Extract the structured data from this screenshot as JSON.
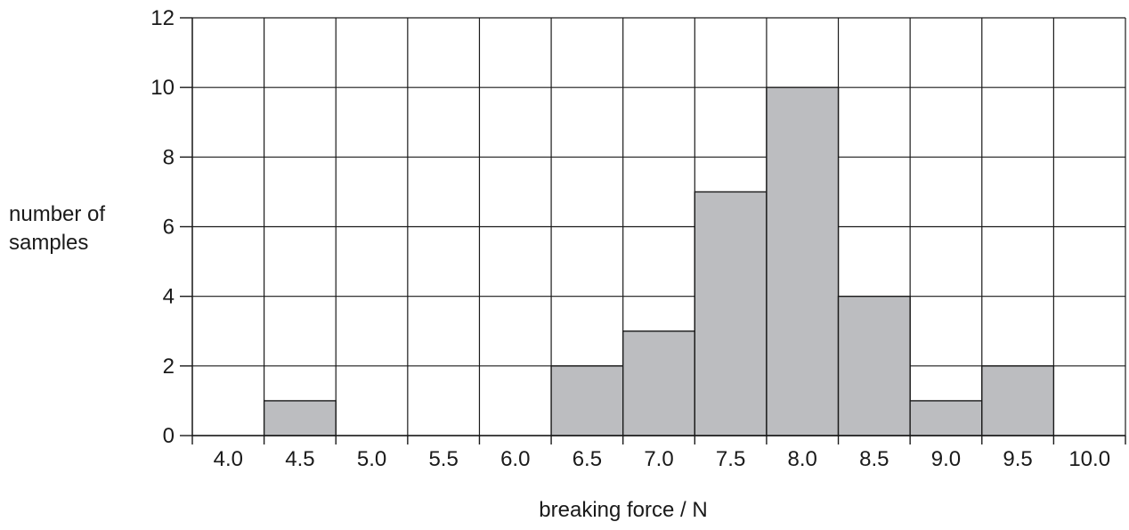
{
  "chart_data": {
    "type": "bar",
    "xlabel": "breaking force / N",
    "ylabel": [
      "number of",
      "samples"
    ],
    "x_ticks": [
      "4.0",
      "4.5",
      "5.0",
      "5.5",
      "6.0",
      "6.5",
      "7.0",
      "7.5",
      "8.0",
      "8.5",
      "9.0",
      "9.5",
      "10.0"
    ],
    "y_ticks": [
      "0",
      "2",
      "4",
      "6",
      "8",
      "10",
      "12"
    ],
    "ylim": [
      0,
      12
    ],
    "bins": [
      {
        "category": "4.0",
        "value": 0
      },
      {
        "category": "4.5",
        "value": 1
      },
      {
        "category": "5.0",
        "value": 0
      },
      {
        "category": "5.5",
        "value": 0
      },
      {
        "category": "6.0",
        "value": 0
      },
      {
        "category": "6.5",
        "value": 2
      },
      {
        "category": "7.0",
        "value": 3
      },
      {
        "category": "7.5",
        "value": 7
      },
      {
        "category": "8.0",
        "value": 10
      },
      {
        "category": "8.5",
        "value": 4
      },
      {
        "category": "9.0",
        "value": 1
      },
      {
        "category": "9.5",
        "value": 2
      },
      {
        "category": "10.0",
        "value": 0
      }
    ],
    "grid": true,
    "colors": {
      "bar_fill": "#bcbdc0",
      "line": "#1a1a1a"
    }
  }
}
